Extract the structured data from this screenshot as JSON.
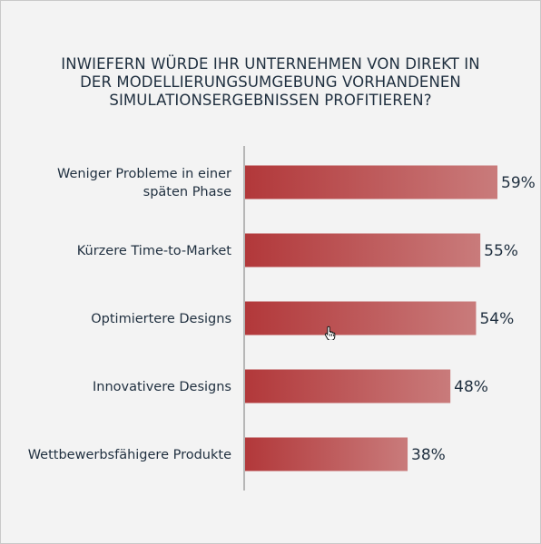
{
  "chart_data": {
    "type": "bar",
    "orientation": "horizontal",
    "title_lines": [
      "INWIEFERN WÜRDE IHR UNTERNEHMEN VON DIREKT IN",
      "DER MODELLIERUNGSUMGEBUNG VORHANDENEN",
      "SIMULATIONSERGEBNISSEN PROFITIEREN?"
    ],
    "categories": [
      [
        "Weniger Probleme in einer",
        "späten Phase"
      ],
      [
        "Kürzere Time-to-Market"
      ],
      [
        "Optimiertere Designs"
      ],
      [
        "Innovativere Designs"
      ],
      [
        "Wettbewerbsfähigere Produkte"
      ]
    ],
    "values": [
      59,
      55,
      54,
      48,
      38
    ],
    "value_labels": [
      "59%",
      "55%",
      "54%",
      "48%",
      "38%"
    ],
    "unit": "%",
    "xlim": [
      0,
      59
    ],
    "grid": false,
    "legend": "none",
    "colors": {
      "bar_start": "#b2383a",
      "bar_end": "#c97b7b",
      "text": "#1f2f3f",
      "axis": "#7a7a7a"
    }
  },
  "cursor": {
    "icon": "hand-pointer-icon"
  }
}
